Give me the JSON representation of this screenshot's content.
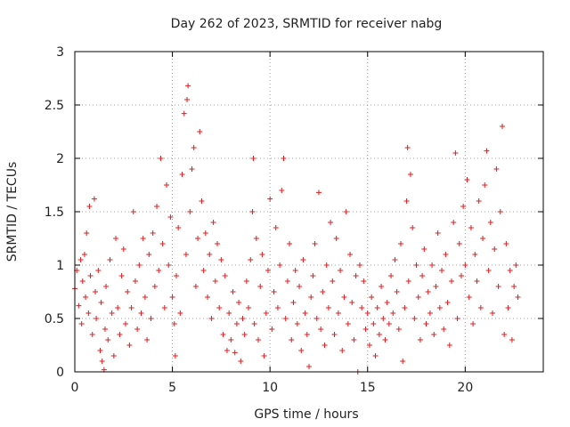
{
  "chart_data": {
    "type": "scatter",
    "title": "Day 262 of 2023, SRMTID for receiver nabg",
    "xlabel": "GPS time / hours",
    "ylabel": "SRMTID / TECUs",
    "xlim": [
      0,
      24
    ],
    "ylim": [
      0,
      3
    ],
    "xticks": [
      0,
      5,
      10,
      15,
      20
    ],
    "yticks": [
      0,
      0.5,
      1,
      1.5,
      2,
      2.5,
      3
    ],
    "xtick_labels": [
      "0",
      "5",
      "10",
      "15",
      "20"
    ],
    "ytick_labels": [
      "0",
      "0.5",
      "1",
      "1.5",
      "2",
      "2.5",
      "3"
    ],
    "grid": true,
    "marker": "plus",
    "color": "#e41a1c",
    "series": [
      {
        "name": "SRMTID",
        "points": [
          [
            0.0,
            0.78
          ],
          [
            0.1,
            0.95
          ],
          [
            0.2,
            0.62
          ],
          [
            0.3,
            1.05
          ],
          [
            0.35,
            0.45
          ],
          [
            0.4,
            0.85
          ],
          [
            0.5,
            1.1
          ],
          [
            0.55,
            0.7
          ],
          [
            0.6,
            1.3
          ],
          [
            0.7,
            0.55
          ],
          [
            0.75,
            1.55
          ],
          [
            0.8,
            0.9
          ],
          [
            0.9,
            0.35
          ],
          [
            1.0,
            1.62
          ],
          [
            1.05,
            0.75
          ],
          [
            1.1,
            0.5
          ],
          [
            1.2,
            0.95
          ],
          [
            1.3,
            0.2
          ],
          [
            1.35,
            0.65
          ],
          [
            1.4,
            0.1
          ],
          [
            1.5,
            0.02
          ],
          [
            1.55,
            0.4
          ],
          [
            1.6,
            0.8
          ],
          [
            1.7,
            0.3
          ],
          [
            1.8,
            1.05
          ],
          [
            1.9,
            0.55
          ],
          [
            2.0,
            0.15
          ],
          [
            2.1,
            1.25
          ],
          [
            2.2,
            0.6
          ],
          [
            2.3,
            0.35
          ],
          [
            2.4,
            0.9
          ],
          [
            2.5,
            1.15
          ],
          [
            2.6,
            0.45
          ],
          [
            2.7,
            0.75
          ],
          [
            2.8,
            0.25
          ],
          [
            2.9,
            0.6
          ],
          [
            3.0,
            1.5
          ],
          [
            3.1,
            0.85
          ],
          [
            3.2,
            0.4
          ],
          [
            3.3,
            1.0
          ],
          [
            3.4,
            0.55
          ],
          [
            3.5,
            1.25
          ],
          [
            3.6,
            0.7
          ],
          [
            3.7,
            0.3
          ],
          [
            3.8,
            1.1
          ],
          [
            3.9,
            0.5
          ],
          [
            4.0,
            1.3
          ],
          [
            4.1,
            0.8
          ],
          [
            4.2,
            1.55
          ],
          [
            4.3,
            0.95
          ],
          [
            4.4,
            2.0
          ],
          [
            4.5,
            1.2
          ],
          [
            4.6,
            0.6
          ],
          [
            4.7,
            1.75
          ],
          [
            4.8,
            1.0
          ],
          [
            4.9,
            1.45
          ],
          [
            5.0,
            0.7
          ],
          [
            5.1,
            0.45
          ],
          [
            5.15,
            0.15
          ],
          [
            5.2,
            0.9
          ],
          [
            5.3,
            1.35
          ],
          [
            5.4,
            0.55
          ],
          [
            5.5,
            1.85
          ],
          [
            5.6,
            2.42
          ],
          [
            5.7,
            1.1
          ],
          [
            5.75,
            2.55
          ],
          [
            5.8,
            2.68
          ],
          [
            5.9,
            1.5
          ],
          [
            6.0,
            1.9
          ],
          [
            6.1,
            2.1
          ],
          [
            6.2,
            0.8
          ],
          [
            6.3,
            1.25
          ],
          [
            6.4,
            2.25
          ],
          [
            6.5,
            1.6
          ],
          [
            6.6,
            0.95
          ],
          [
            6.7,
            1.3
          ],
          [
            6.8,
            0.7
          ],
          [
            6.9,
            1.1
          ],
          [
            7.0,
            0.5
          ],
          [
            7.1,
            1.4
          ],
          [
            7.2,
            0.85
          ],
          [
            7.3,
            1.2
          ],
          [
            7.4,
            0.6
          ],
          [
            7.5,
            1.05
          ],
          [
            7.6,
            0.35
          ],
          [
            7.7,
            0.9
          ],
          [
            7.8,
            0.2
          ],
          [
            7.9,
            0.55
          ],
          [
            8.0,
            0.3
          ],
          [
            8.1,
            0.75
          ],
          [
            8.2,
            0.18
          ],
          [
            8.3,
            0.45
          ],
          [
            8.4,
            0.65
          ],
          [
            8.5,
            0.1
          ],
          [
            8.6,
            0.5
          ],
          [
            8.7,
            0.35
          ],
          [
            8.8,
            0.85
          ],
          [
            8.9,
            0.6
          ],
          [
            9.0,
            1.05
          ],
          [
            9.1,
            1.5
          ],
          [
            9.15,
            2.0
          ],
          [
            9.2,
            0.45
          ],
          [
            9.3,
            1.25
          ],
          [
            9.4,
            0.3
          ],
          [
            9.5,
            0.8
          ],
          [
            9.6,
            1.1
          ],
          [
            9.7,
            0.15
          ],
          [
            9.8,
            0.55
          ],
          [
            9.9,
            0.95
          ],
          [
            10.0,
            1.62
          ],
          [
            10.1,
            0.4
          ],
          [
            10.2,
            0.75
          ],
          [
            10.3,
            1.35
          ],
          [
            10.4,
            0.6
          ],
          [
            10.5,
            1.0
          ],
          [
            10.6,
            1.7
          ],
          [
            10.7,
            2.0
          ],
          [
            10.8,
            0.5
          ],
          [
            10.9,
            0.85
          ],
          [
            11.0,
            1.2
          ],
          [
            11.1,
            0.3
          ],
          [
            11.2,
            0.65
          ],
          [
            11.3,
            0.95
          ],
          [
            11.4,
            0.45
          ],
          [
            11.5,
            0.8
          ],
          [
            11.6,
            0.2
          ],
          [
            11.7,
            1.05
          ],
          [
            11.8,
            0.55
          ],
          [
            11.9,
            0.35
          ],
          [
            12.0,
            0.05
          ],
          [
            12.1,
            0.7
          ],
          [
            12.2,
            0.9
          ],
          [
            12.3,
            1.2
          ],
          [
            12.4,
            0.5
          ],
          [
            12.5,
            1.68
          ],
          [
            12.6,
            0.4
          ],
          [
            12.7,
            0.75
          ],
          [
            12.8,
            0.25
          ],
          [
            12.9,
            1.0
          ],
          [
            13.0,
            0.6
          ],
          [
            13.1,
            1.4
          ],
          [
            13.2,
            0.85
          ],
          [
            13.3,
            0.35
          ],
          [
            13.4,
            1.25
          ],
          [
            13.5,
            0.55
          ],
          [
            13.6,
            0.95
          ],
          [
            13.7,
            0.2
          ],
          [
            13.8,
            0.7
          ],
          [
            13.9,
            1.5
          ],
          [
            14.0,
            0.45
          ],
          [
            14.1,
            1.1
          ],
          [
            14.2,
            0.65
          ],
          [
            14.3,
            0.3
          ],
          [
            14.4,
            0.9
          ],
          [
            14.5,
            0.0
          ],
          [
            14.6,
            1.0
          ],
          [
            14.7,
            0.6
          ],
          [
            14.8,
            0.85
          ],
          [
            14.9,
            0.4
          ],
          [
            15.0,
            0.55
          ],
          [
            15.1,
            0.25
          ],
          [
            15.2,
            0.7
          ],
          [
            15.3,
            0.45
          ],
          [
            15.4,
            0.15
          ],
          [
            15.5,
            0.6
          ],
          [
            15.6,
            0.35
          ],
          [
            15.7,
            0.8
          ],
          [
            15.8,
            0.5
          ],
          [
            15.9,
            0.3
          ],
          [
            16.0,
            0.65
          ],
          [
            16.1,
            0.45
          ],
          [
            16.2,
            0.9
          ],
          [
            16.3,
            0.55
          ],
          [
            16.4,
            1.05
          ],
          [
            16.5,
            0.75
          ],
          [
            16.6,
            0.4
          ],
          [
            16.7,
            1.2
          ],
          [
            16.8,
            0.1
          ],
          [
            16.9,
            0.6
          ],
          [
            17.0,
            1.6
          ],
          [
            17.05,
            2.1
          ],
          [
            17.1,
            0.85
          ],
          [
            17.2,
            1.85
          ],
          [
            17.3,
            1.35
          ],
          [
            17.4,
            0.5
          ],
          [
            17.5,
            1.0
          ],
          [
            17.6,
            0.7
          ],
          [
            17.7,
            0.3
          ],
          [
            17.8,
            0.9
          ],
          [
            17.9,
            1.15
          ],
          [
            18.0,
            0.45
          ],
          [
            18.1,
            0.75
          ],
          [
            18.2,
            0.55
          ],
          [
            18.3,
            1.0
          ],
          [
            18.4,
            0.35
          ],
          [
            18.5,
            0.8
          ],
          [
            18.6,
            1.3
          ],
          [
            18.7,
            0.6
          ],
          [
            18.8,
            0.95
          ],
          [
            18.9,
            0.4
          ],
          [
            19.0,
            1.1
          ],
          [
            19.1,
            0.65
          ],
          [
            19.2,
            0.25
          ],
          [
            19.3,
            0.85
          ],
          [
            19.4,
            1.4
          ],
          [
            19.5,
            2.05
          ],
          [
            19.6,
            0.5
          ],
          [
            19.7,
            1.2
          ],
          [
            19.8,
            0.9
          ],
          [
            19.9,
            1.55
          ],
          [
            20.0,
            1.0
          ],
          [
            20.1,
            1.8
          ],
          [
            20.2,
            0.7
          ],
          [
            20.3,
            1.35
          ],
          [
            20.4,
            0.45
          ],
          [
            20.5,
            1.1
          ],
          [
            20.6,
            0.85
          ],
          [
            20.7,
            1.6
          ],
          [
            20.8,
            0.6
          ],
          [
            20.9,
            1.25
          ],
          [
            21.0,
            1.75
          ],
          [
            21.1,
            2.07
          ],
          [
            21.2,
            0.95
          ],
          [
            21.3,
            1.4
          ],
          [
            21.4,
            0.55
          ],
          [
            21.5,
            1.15
          ],
          [
            21.6,
            1.9
          ],
          [
            21.7,
            0.8
          ],
          [
            21.8,
            1.5
          ],
          [
            21.9,
            2.3
          ],
          [
            22.0,
            0.35
          ],
          [
            22.1,
            1.2
          ],
          [
            22.2,
            0.6
          ],
          [
            22.3,
            0.95
          ],
          [
            22.4,
            0.3
          ],
          [
            22.5,
            0.8
          ],
          [
            22.6,
            1.0
          ],
          [
            22.7,
            0.7
          ]
        ]
      }
    ]
  }
}
